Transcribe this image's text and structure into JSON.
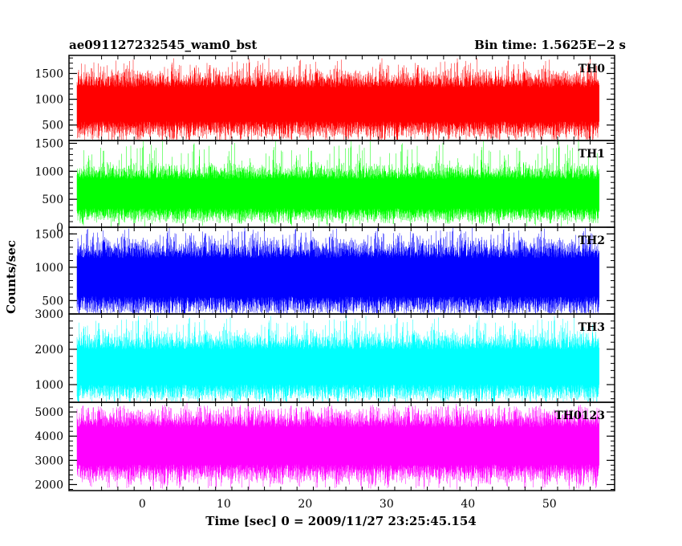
{
  "header": {
    "left_title": "ae091127232545_wam0_bst",
    "right_title": "Bin time: 1.5625E−2 s"
  },
  "chart_data": {
    "type": "line",
    "title": "ae091127232545_wam0_bst",
    "bin_time_label": "Bin time: 1.5625E−2 s",
    "xlabel": "Time [sec] 0 = 2009/11/27 23:25:45.154",
    "ylabel": "Counts/sec",
    "xlim": [
      -9,
      58
    ],
    "x_data_range": [
      -8,
      56
    ],
    "x_ticks": [
      0,
      10,
      20,
      30,
      40,
      50
    ],
    "x_tick_labels": [
      "0",
      "10",
      "20",
      "30",
      "40",
      "50"
    ],
    "grid": false,
    "panels": [
      {
        "name": "TH0",
        "color": "#ff0000",
        "ylim": [
          200,
          1850
        ],
        "y_ticks": [
          500,
          1000,
          1500
        ],
        "y_tick_labels": [
          "500",
          "1000",
          "1500"
        ],
        "mean": 900,
        "typical_min": 300,
        "typical_max": 1500,
        "peak_max": 1800,
        "floor_min": 150
      },
      {
        "name": "TH1",
        "color": "#00ff00",
        "ylim": [
          0,
          1550
        ],
        "y_ticks": [
          0,
          500,
          1000,
          1500
        ],
        "y_tick_labels": [
          "0",
          "500",
          "1000",
          "1500"
        ],
        "mean": 600,
        "typical_min": 200,
        "typical_max": 1150,
        "peak_max": 1550,
        "floor_min": 50
      },
      {
        "name": "TH2",
        "color": "#0000ff",
        "ylim": [
          300,
          1600
        ],
        "y_ticks": [
          500,
          1000,
          1500
        ],
        "y_tick_labels": [
          "500",
          "1000",
          "1500"
        ],
        "mean": 850,
        "typical_min": 350,
        "typical_max": 1400,
        "peak_max": 1600,
        "floor_min": 320
      },
      {
        "name": "TH3",
        "color": "#00ffff",
        "ylim": [
          500,
          3000
        ],
        "y_ticks": [
          1000,
          2000,
          3000
        ],
        "y_tick_labels": [
          "1000",
          "2000",
          "3000"
        ],
        "mean": 1500,
        "typical_min": 700,
        "typical_max": 2500,
        "peak_max": 2950,
        "floor_min": 520
      },
      {
        "name": "TH0123",
        "color": "#ff00ff",
        "ylim": [
          1750,
          5400
        ],
        "y_ticks": [
          2000,
          3000,
          4000,
          5000
        ],
        "y_tick_labels": [
          "2000",
          "3000",
          "4000",
          "5000"
        ],
        "mean": 3600,
        "typical_min": 2200,
        "typical_max": 5000,
        "peak_max": 5300,
        "floor_min": 1800
      }
    ]
  }
}
